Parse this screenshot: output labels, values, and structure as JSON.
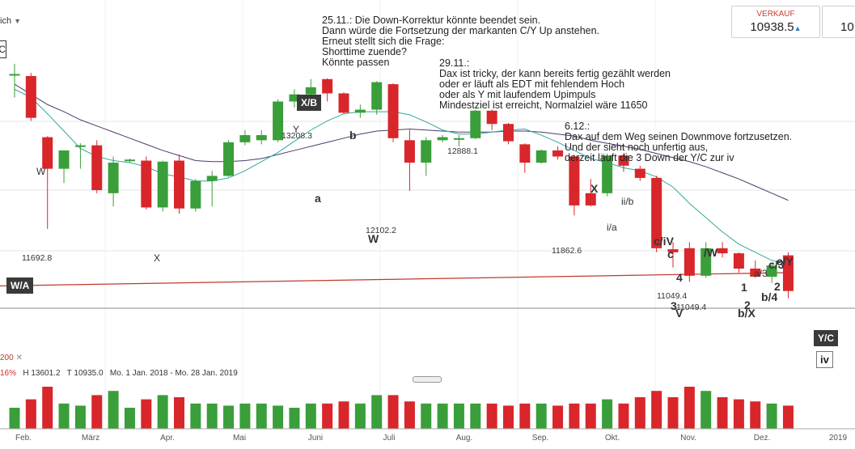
{
  "header": {
    "left_fragment": "ich",
    "left_dropdown_icon": "chevron-down-icon",
    "corner_box_char": "C"
  },
  "quotes": [
    {
      "label": "VERKAUF",
      "value": "10938.5",
      "arrow": "▲"
    },
    {
      "label": "",
      "value": "10"
    }
  ],
  "notes": [
    {
      "id": "note1",
      "text": "25.11.: Die Down-Korrektur könnte beendet sein.\nDann würde die Fortsetzung der markanten C/Y Up anstehen.\nErneut stellt sich die Frage:\nShorttime zuende?\nKönnte passen"
    },
    {
      "id": "note2",
      "text": "29.11.:\nDax ist tricky, der kann bereits fertig gezählt werden\noder er läuft als EDT mit fehlendem Hoch\noder als Y mit laufendem Upimpuls\nMindestziel ist erreicht, Normalziel wäre 11650"
    },
    {
      "id": "note3",
      "text": "6.12.:\nDax auf dem Weg seinen Downmove fortzusetzen.\nUnd der sieht noch unfertig aus,\nderzeit läuft die 3 Down der Y/C zur iv"
    }
  ],
  "wave_boxes": [
    {
      "text": "X/B",
      "style": "dark"
    },
    {
      "text": "W/A",
      "style": "dark"
    },
    {
      "text": "Y/C",
      "style": "dark"
    },
    {
      "text": "iv",
      "style": "light"
    }
  ],
  "chart_data": {
    "type": "candlestick",
    "x_months": [
      "Feb.",
      "März",
      "Apr.",
      "Mai",
      "Juni",
      "Juli",
      "Aug.",
      "Sep.",
      "Okt.",
      "Nov.",
      "Dez.",
      "2019"
    ],
    "price_labels": [
      {
        "text": "11692.8",
        "kind": "price"
      },
      {
        "text": "13208.3",
        "kind": "price"
      },
      {
        "text": "12102.2",
        "kind": "price"
      },
      {
        "text": "12888.1",
        "kind": "price"
      },
      {
        "text": "11862.6",
        "kind": "price"
      },
      {
        "text": "11049.4",
        "kind": "price"
      },
      {
        "text": "11049.4",
        "kind": "price"
      }
    ],
    "wave_labels": [
      {
        "text": "W",
        "bold": false
      },
      {
        "text": "X",
        "bold": false
      },
      {
        "text": "Y",
        "bold": false
      },
      {
        "text": "b",
        "bold": true
      },
      {
        "text": "a",
        "bold": true
      },
      {
        "text": "W",
        "bold": true
      },
      {
        "text": "X",
        "bold": true
      },
      {
        "text": "ii/b",
        "bold": false
      },
      {
        "text": "i/a",
        "bold": false
      },
      {
        "text": "c/iV",
        "bold": true
      },
      {
        "text": "/W",
        "bold": true
      },
      {
        "text": "c/3",
        "bold": true
      },
      {
        "text": "c/Y",
        "bold": true
      },
      {
        "text": "a/3",
        "bold": false
      },
      {
        "text": "V",
        "bold": true
      },
      {
        "text": "3",
        "bold": true
      },
      {
        "text": "2",
        "bold": true
      },
      {
        "text": "b/4",
        "bold": true
      },
      {
        "text": "b/X",
        "bold": true
      },
      {
        "text": "1",
        "bold": true
      },
      {
        "text": "4",
        "bold": true
      },
      {
        "text": "2",
        "bold": true
      },
      {
        "text": "c",
        "bold": true
      }
    ],
    "candles": [
      {
        "o": 13250,
        "h": 13350,
        "l": 13020,
        "c": 13250,
        "dir": "up"
      },
      {
        "o": 13230,
        "h": 13260,
        "l": 12790,
        "c": 12820,
        "dir": "down"
      },
      {
        "o": 12630,
        "h": 12640,
        "l": 11730,
        "c": 12320,
        "dir": "down"
      },
      {
        "o": 12320,
        "h": 12500,
        "l": 12180,
        "c": 12500,
        "dir": "up"
      },
      {
        "o": 12550,
        "h": 12570,
        "l": 12320,
        "c": 12540,
        "dir": "up"
      },
      {
        "o": 12550,
        "h": 12600,
        "l": 12080,
        "c": 12110,
        "dir": "down"
      },
      {
        "o": 12080,
        "h": 12440,
        "l": 11950,
        "c": 12380,
        "dir": "up"
      },
      {
        "o": 12400,
        "h": 12420,
        "l": 12380,
        "c": 12410,
        "dir": "up"
      },
      {
        "o": 12400,
        "h": 12440,
        "l": 11920,
        "c": 11940,
        "dir": "down"
      },
      {
        "o": 11940,
        "h": 12400,
        "l": 11900,
        "c": 12390,
        "dir": "up"
      },
      {
        "o": 12400,
        "h": 12460,
        "l": 11880,
        "c": 11930,
        "dir": "down"
      },
      {
        "o": 11930,
        "h": 12220,
        "l": 11900,
        "c": 12200,
        "dir": "up"
      },
      {
        "o": 12200,
        "h": 12300,
        "l": 11950,
        "c": 12250,
        "dir": "up"
      },
      {
        "o": 12250,
        "h": 12600,
        "l": 12240,
        "c": 12580,
        "dir": "up"
      },
      {
        "o": 12580,
        "h": 12700,
        "l": 12550,
        "c": 12650,
        "dir": "up"
      },
      {
        "o": 12650,
        "h": 12700,
        "l": 12560,
        "c": 12600,
        "dir": "up"
      },
      {
        "o": 12600,
        "h": 13000,
        "l": 12580,
        "c": 12980,
        "dir": "up"
      },
      {
        "o": 12980,
        "h": 13100,
        "l": 12920,
        "c": 13050,
        "dir": "up"
      },
      {
        "o": 13050,
        "h": 13200,
        "l": 13000,
        "c": 13120,
        "dir": "up"
      },
      {
        "o": 13200,
        "h": 13208,
        "l": 12980,
        "c": 13060,
        "dir": "down"
      },
      {
        "o": 13060,
        "h": 13070,
        "l": 12860,
        "c": 12870,
        "dir": "down"
      },
      {
        "o": 12870,
        "h": 12950,
        "l": 12820,
        "c": 12900,
        "dir": "up"
      },
      {
        "o": 12900,
        "h": 13180,
        "l": 12850,
        "c": 13170,
        "dir": "up"
      },
      {
        "o": 13150,
        "h": 13160,
        "l": 12580,
        "c": 12620,
        "dir": "down"
      },
      {
        "o": 12600,
        "h": 12700,
        "l": 12102,
        "c": 12380,
        "dir": "down"
      },
      {
        "o": 12380,
        "h": 12630,
        "l": 12250,
        "c": 12600,
        "dir": "up"
      },
      {
        "o": 12600,
        "h": 12650,
        "l": 12580,
        "c": 12630,
        "dir": "up"
      },
      {
        "o": 12620,
        "h": 12650,
        "l": 12540,
        "c": 12620,
        "dir": "up"
      },
      {
        "o": 12620,
        "h": 12900,
        "l": 12610,
        "c": 12890,
        "dir": "up"
      },
      {
        "o": 12890,
        "h": 12900,
        "l": 12700,
        "c": 12760,
        "dir": "down"
      },
      {
        "o": 12760,
        "h": 12770,
        "l": 12560,
        "c": 12590,
        "dir": "down"
      },
      {
        "o": 12560,
        "h": 12570,
        "l": 12280,
        "c": 12380,
        "dir": "down"
      },
      {
        "o": 12380,
        "h": 12510,
        "l": 12370,
        "c": 12500,
        "dir": "up"
      },
      {
        "o": 12500,
        "h": 12540,
        "l": 12410,
        "c": 12440,
        "dir": "down"
      },
      {
        "o": 12440,
        "h": 12460,
        "l": 11862,
        "c": 11960,
        "dir": "down"
      },
      {
        "o": 11960,
        "h": 12220,
        "l": 11950,
        "c": 12080,
        "dir": "down"
      },
      {
        "o": 12080,
        "h": 12470,
        "l": 12050,
        "c": 12450,
        "dir": "up"
      },
      {
        "o": 12450,
        "h": 12470,
        "l": 12290,
        "c": 12350,
        "dir": "down"
      },
      {
        "o": 12320,
        "h": 12350,
        "l": 12200,
        "c": 12230,
        "dir": "down"
      },
      {
        "o": 12230,
        "h": 12250,
        "l": 11500,
        "c": 11540,
        "dir": "down"
      },
      {
        "o": 11530,
        "h": 11600,
        "l": 11350,
        "c": 11500,
        "dir": "down"
      },
      {
        "o": 11540,
        "h": 11600,
        "l": 11210,
        "c": 11270,
        "dir": "down"
      },
      {
        "o": 11270,
        "h": 11600,
        "l": 11250,
        "c": 11540,
        "dir": "up"
      },
      {
        "o": 11540,
        "h": 11600,
        "l": 11450,
        "c": 11490,
        "dir": "down"
      },
      {
        "o": 11490,
        "h": 11500,
        "l": 11300,
        "c": 11340,
        "dir": "down"
      },
      {
        "o": 11340,
        "h": 11420,
        "l": 11250,
        "c": 11260,
        "dir": "down"
      },
      {
        "o": 11260,
        "h": 11400,
        "l": 11200,
        "c": 11370,
        "dir": "up"
      },
      {
        "o": 11470,
        "h": 11500,
        "l": 11049,
        "c": 11120,
        "dir": "down"
      }
    ],
    "sma_fast": [
      13100,
      13020,
      12860,
      12690,
      12520,
      12440,
      12400,
      12380,
      12340,
      12270,
      12240,
      12200,
      12200,
      12230,
      12300,
      12390,
      12480,
      12590,
      12700,
      12790,
      12860,
      12880,
      12880,
      12880,
      12850,
      12780,
      12700,
      12660,
      12660,
      12680,
      12700,
      12710,
      12650,
      12580,
      12500,
      12420,
      12380,
      12330,
      12300,
      12240,
      12140,
      11980,
      11840,
      11700,
      11580,
      11500,
      11420,
      11380
    ],
    "sma_slow": [
      13150,
      13050,
      12950,
      12880,
      12800,
      12740,
      12680,
      12620,
      12560,
      12500,
      12450,
      12400,
      12390,
      12390,
      12400,
      12420,
      12460,
      12500,
      12540,
      12580,
      12620,
      12660,
      12690,
      12700,
      12710,
      12700,
      12690,
      12680,
      12680,
      12680,
      12690,
      12690,
      12680,
      12660,
      12640,
      12600,
      12570,
      12540,
      12510,
      12470,
      12430,
      12390,
      12340,
      12280,
      12220,
      12150,
      12080,
      12010
    ],
    "sma200_start": 11170,
    "sma200_end": 11300,
    "volume": [
      {
        "v": 0.5,
        "dir": "up"
      },
      {
        "v": 0.7,
        "dir": "down"
      },
      {
        "v": 1.0,
        "dir": "down"
      },
      {
        "v": 0.6,
        "dir": "up"
      },
      {
        "v": 0.55,
        "dir": "up"
      },
      {
        "v": 0.8,
        "dir": "down"
      },
      {
        "v": 0.9,
        "dir": "up"
      },
      {
        "v": 0.5,
        "dir": "up"
      },
      {
        "v": 0.7,
        "dir": "down"
      },
      {
        "v": 0.8,
        "dir": "up"
      },
      {
        "v": 0.75,
        "dir": "down"
      },
      {
        "v": 0.6,
        "dir": "up"
      },
      {
        "v": 0.6,
        "dir": "up"
      },
      {
        "v": 0.55,
        "dir": "up"
      },
      {
        "v": 0.6,
        "dir": "up"
      },
      {
        "v": 0.6,
        "dir": "up"
      },
      {
        "v": 0.55,
        "dir": "up"
      },
      {
        "v": 0.5,
        "dir": "up"
      },
      {
        "v": 0.6,
        "dir": "up"
      },
      {
        "v": 0.6,
        "dir": "down"
      },
      {
        "v": 0.65,
        "dir": "down"
      },
      {
        "v": 0.6,
        "dir": "up"
      },
      {
        "v": 0.8,
        "dir": "up"
      },
      {
        "v": 0.8,
        "dir": "down"
      },
      {
        "v": 0.65,
        "dir": "down"
      },
      {
        "v": 0.6,
        "dir": "up"
      },
      {
        "v": 0.6,
        "dir": "up"
      },
      {
        "v": 0.6,
        "dir": "up"
      },
      {
        "v": 0.6,
        "dir": "up"
      },
      {
        "v": 0.6,
        "dir": "down"
      },
      {
        "v": 0.55,
        "dir": "down"
      },
      {
        "v": 0.6,
        "dir": "down"
      },
      {
        "v": 0.6,
        "dir": "up"
      },
      {
        "v": 0.55,
        "dir": "down"
      },
      {
        "v": 0.6,
        "dir": "down"
      },
      {
        "v": 0.6,
        "dir": "down"
      },
      {
        "v": 0.7,
        "dir": "up"
      },
      {
        "v": 0.6,
        "dir": "down"
      },
      {
        "v": 0.75,
        "dir": "down"
      },
      {
        "v": 0.9,
        "dir": "down"
      },
      {
        "v": 0.75,
        "dir": "down"
      },
      {
        "v": 1.0,
        "dir": "down"
      },
      {
        "v": 0.9,
        "dir": "up"
      },
      {
        "v": 0.75,
        "dir": "down"
      },
      {
        "v": 0.7,
        "dir": "down"
      },
      {
        "v": 0.65,
        "dir": "down"
      },
      {
        "v": 0.6,
        "dir": "up"
      },
      {
        "v": 0.55,
        "dir": "down"
      }
    ],
    "legend": {
      "sma_label": "200",
      "close_icon": "close-icon",
      "pct": "16%",
      "high": "H 13601.2",
      "last": "T 10935.0",
      "range": "Mo. 1 Jan. 2018 - Mo. 28 Jan. 2019"
    },
    "colors": {
      "up": "#3a9e3a",
      "down": "#d8262b",
      "sma_fast": "#2fa8a0",
      "sma_slow": "#4a3b6a",
      "sma200": "#c0392b"
    },
    "ylim": [
      10800,
      13500
    ]
  }
}
